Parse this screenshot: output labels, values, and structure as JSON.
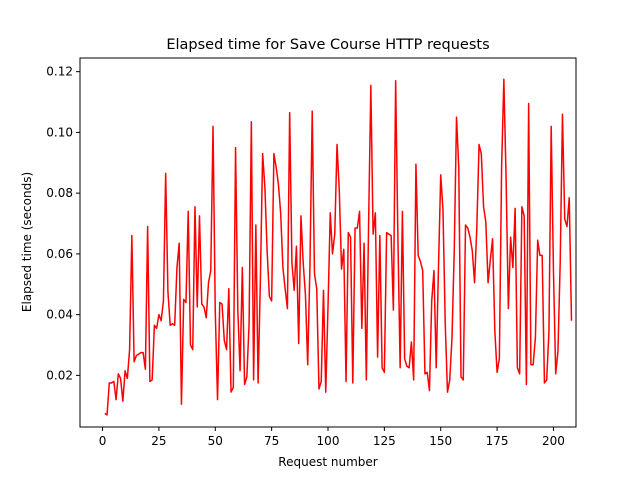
{
  "chart_data": {
    "type": "line",
    "title": "Elapsed time for Save Course HTTP requests",
    "xlabel": "Request number",
    "ylabel": "Elapsed time (seconds)",
    "xlim": [
      -10,
      210
    ],
    "ylim": [
      0.003,
      0.1245
    ],
    "xticks": [
      0,
      25,
      50,
      75,
      100,
      125,
      150,
      175,
      200
    ],
    "xtick_labels": [
      "0",
      "25",
      "50",
      "75",
      "100",
      "125",
      "150",
      "175",
      "200"
    ],
    "yticks": [
      0.02,
      0.04,
      0.06,
      0.08,
      0.1,
      0.12
    ],
    "ytick_labels": [
      "0.02",
      "0.04",
      "0.06",
      "0.08",
      "0.10",
      "0.12"
    ],
    "grid": false,
    "legend": "none",
    "series": [
      {
        "color": "#ff0000",
        "x_start": 1,
        "x_step": 1,
        "values": [
          0.0075,
          0.007,
          0.0175,
          0.0175,
          0.018,
          0.012,
          0.0205,
          0.019,
          0.0115,
          0.0215,
          0.019,
          0.0285,
          0.066,
          0.0245,
          0.0265,
          0.027,
          0.0275,
          0.0275,
          0.022,
          0.069,
          0.018,
          0.0185,
          0.0365,
          0.0355,
          0.04,
          0.038,
          0.0445,
          0.0865,
          0.0475,
          0.0365,
          0.037,
          0.0365,
          0.0555,
          0.0635,
          0.0105,
          0.045,
          0.044,
          0.074,
          0.03,
          0.0285,
          0.0755,
          0.0425,
          0.0725,
          0.0435,
          0.0425,
          0.039,
          0.0505,
          0.0545,
          0.102,
          0.041,
          0.012,
          0.044,
          0.0435,
          0.0315,
          0.0285,
          0.0485,
          0.0145,
          0.016,
          0.095,
          0.0415,
          0.0215,
          0.0555,
          0.017,
          0.0195,
          0.037,
          0.1035,
          0.0185,
          0.0695,
          0.0175,
          0.051,
          0.093,
          0.082,
          0.061,
          0.046,
          0.0445,
          0.093,
          0.0885,
          0.083,
          0.0735,
          0.0555,
          0.0485,
          0.042,
          0.1065,
          0.057,
          0.048,
          0.0625,
          0.0305,
          0.0725,
          0.057,
          0.0465,
          0.0235,
          0.0565,
          0.107,
          0.0535,
          0.0485,
          0.0155,
          0.018,
          0.048,
          0.0145,
          0.0425,
          0.0735,
          0.06,
          0.0665,
          0.096,
          0.081,
          0.055,
          0.0615,
          0.018,
          0.067,
          0.0655,
          0.0175,
          0.0685,
          0.0685,
          0.074,
          0.0355,
          0.0635,
          0.0185,
          0.0695,
          0.1155,
          0.0665,
          0.0735,
          0.026,
          0.066,
          0.0225,
          0.021,
          0.067,
          0.0665,
          0.066,
          0.0415,
          0.117,
          0.0655,
          0.0225,
          0.074,
          0.0255,
          0.023,
          0.0225,
          0.031,
          0.0185,
          0.0895,
          0.0595,
          0.0575,
          0.0545,
          0.0205,
          0.021,
          0.015,
          0.0445,
          0.0545,
          0.0225,
          0.0555,
          0.086,
          0.0745,
          0.037,
          0.0145,
          0.0185,
          0.0325,
          0.061,
          0.105,
          0.0885,
          0.0195,
          0.0185,
          0.0695,
          0.0685,
          0.0655,
          0.061,
          0.0505,
          0.0685,
          0.096,
          0.093,
          0.0755,
          0.0705,
          0.0505,
          0.058,
          0.065,
          0.0345,
          0.021,
          0.0255,
          0.0885,
          0.1175,
          0.0845,
          0.042,
          0.0655,
          0.0555,
          0.075,
          0.0225,
          0.0205,
          0.0755,
          0.0725,
          0.017,
          0.1095,
          0.0235,
          0.0235,
          0.0325,
          0.0645,
          0.0595,
          0.0595,
          0.0175,
          0.0185,
          0.0345,
          0.102,
          0.0545,
          0.0205,
          0.028,
          0.0575,
          0.106,
          0.0715,
          0.069,
          0.0785,
          0.038
        ]
      }
    ]
  }
}
